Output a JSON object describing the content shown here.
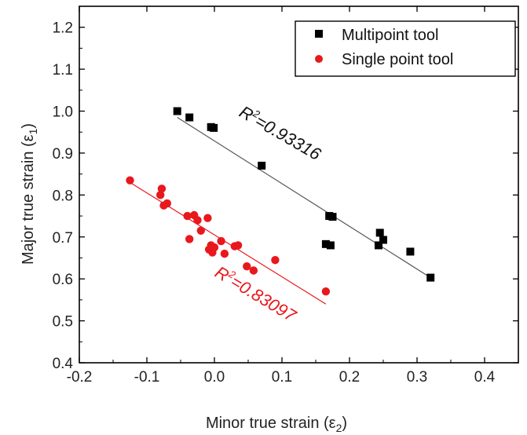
{
  "chart_data": {
    "type": "scatter",
    "xlabel": "Minor true strain (ε",
    "xlabel_sub": "2",
    "xlabel_close": ")",
    "ylabel": "Major true strain (ε",
    "ylabel_sub": "1",
    "ylabel_close": ")",
    "xlim": [
      -0.2,
      0.45
    ],
    "ylim": [
      0.4,
      1.25
    ],
    "xticks": [
      -0.2,
      -0.1,
      0.0,
      0.1,
      0.2,
      0.3,
      0.4
    ],
    "xtick_labels": [
      "-0.2",
      "-0.1",
      "0.0",
      "0.1",
      "0.2",
      "0.3",
      "0.4"
    ],
    "yticks": [
      0.4,
      0.5,
      0.6,
      0.7,
      0.8,
      0.9,
      1.0,
      1.1,
      1.2
    ],
    "ytick_labels": [
      "0.4",
      "0.5",
      "0.6",
      "0.7",
      "0.8",
      "0.9",
      "1.0",
      "1.1",
      "1.2"
    ],
    "grid": false,
    "legend_position": "top-right",
    "series": [
      {
        "name": "Multipoint tool",
        "marker": "square",
        "color": "#000000",
        "points": [
          [
            -0.055,
            1.0
          ],
          [
            -0.037,
            0.985
          ],
          [
            -0.005,
            0.962
          ],
          [
            -0.001,
            0.96
          ],
          [
            0.07,
            0.87
          ],
          [
            0.17,
            0.75
          ],
          [
            0.175,
            0.748
          ],
          [
            0.165,
            0.683
          ],
          [
            0.172,
            0.68
          ],
          [
            0.245,
            0.71
          ],
          [
            0.25,
            0.693
          ],
          [
            0.243,
            0.68
          ],
          [
            0.29,
            0.665
          ],
          [
            0.32,
            0.603
          ]
        ],
        "fit": {
          "x": [
            -0.055,
            0.32
          ],
          "y": [
            0.985,
            0.603
          ]
        },
        "fit_label": "R",
        "fit_label_sup": "2",
        "fit_label_value": "=0.93316"
      },
      {
        "name": "Single point tool",
        "marker": "circle",
        "color": "#e8181c",
        "points": [
          [
            -0.125,
            0.835
          ],
          [
            -0.078,
            0.815
          ],
          [
            -0.08,
            0.8
          ],
          [
            -0.075,
            0.775
          ],
          [
            -0.07,
            0.78
          ],
          [
            -0.04,
            0.75
          ],
          [
            -0.03,
            0.752
          ],
          [
            -0.025,
            0.74
          ],
          [
            -0.037,
            0.695
          ],
          [
            -0.02,
            0.715
          ],
          [
            -0.01,
            0.745
          ],
          [
            -0.005,
            0.68
          ],
          [
            -0.008,
            0.67
          ],
          [
            -0.003,
            0.663
          ],
          [
            0.0,
            0.675
          ],
          [
            0.01,
            0.69
          ],
          [
            0.015,
            0.66
          ],
          [
            0.035,
            0.68
          ],
          [
            0.03,
            0.678
          ],
          [
            0.048,
            0.63
          ],
          [
            0.058,
            0.62
          ],
          [
            0.09,
            0.645
          ],
          [
            0.165,
            0.57
          ]
        ],
        "fit": {
          "x": [
            -0.125,
            0.165
          ],
          "y": [
            0.83,
            0.54
          ]
        },
        "fit_label": "R",
        "fit_label_sup": "2",
        "fit_label_value": "=0.83097"
      }
    ],
    "colors": {
      "black_fit": "#555555",
      "red_fit": "#e8181c"
    }
  }
}
